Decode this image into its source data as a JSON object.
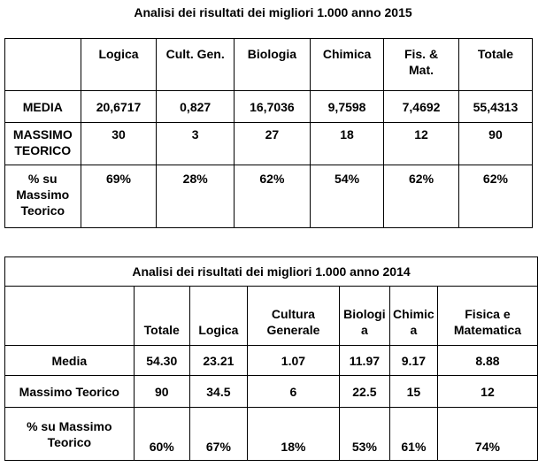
{
  "table2015": {
    "title": "Analisi dei risultati dei migliori 1.000 anno 2015",
    "headers": [
      "",
      "Logica",
      "Cult. Gen.",
      "Biologia",
      "Chimica",
      "Fis. &\nMat.",
      "Totale"
    ],
    "rows": [
      {
        "label": "MEDIA",
        "values": [
          "20,6717",
          "0,827",
          "16,7036",
          "9,7598",
          "7,4692",
          "55,4313"
        ]
      },
      {
        "label": "MASSIMO\nTEORICO",
        "values": [
          "30",
          "3",
          "27",
          "18",
          "12",
          "90"
        ]
      },
      {
        "label": "% su\nMassimo\nTeorico",
        "values": [
          "69%",
          "28%",
          "62%",
          "54%",
          "62%",
          "62%"
        ]
      }
    ]
  },
  "table2014": {
    "title": "Analisi dei risultati dei migliori 1.000 anno 2014",
    "headers": [
      "",
      "Totale",
      "Logica",
      "Cultura\nGenerale",
      "Biologi\na",
      "Chimic\na",
      "Fisica e\nMatematica"
    ],
    "rows": [
      {
        "label": "Media",
        "values": [
          "54.30",
          "23.21",
          "1.07",
          "11.97",
          "9.17",
          "8.88"
        ]
      },
      {
        "label": "Massimo Teorico",
        "values": [
          "90",
          "34.5",
          "6",
          "22.5",
          "15",
          "12"
        ]
      },
      {
        "label": "% su Massimo\nTeorico",
        "values": [
          "60%",
          "67%",
          "18%",
          "53%",
          "61%",
          "74%"
        ]
      }
    ]
  }
}
